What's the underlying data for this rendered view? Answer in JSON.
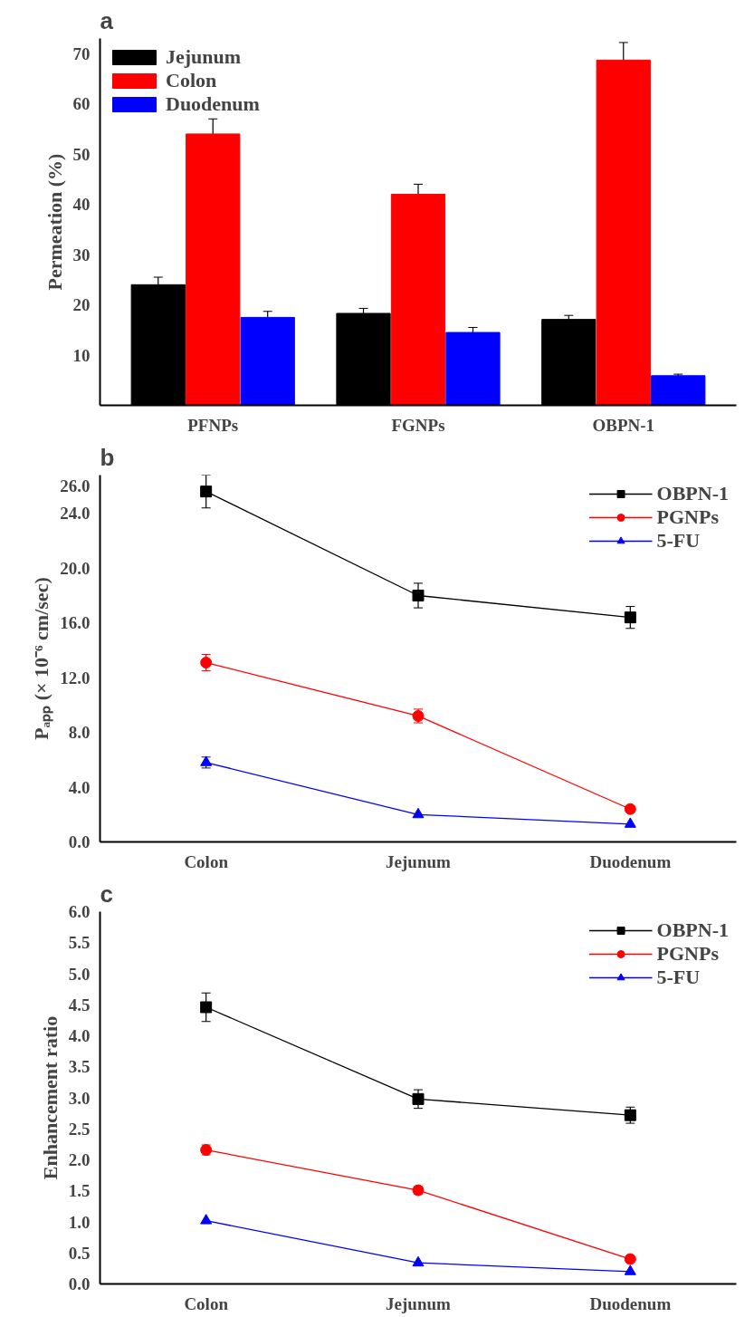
{
  "chart_data": [
    {
      "type": "bar",
      "title": "a",
      "ylabel": "Permeation (%)",
      "categories": [
        "PFNPs",
        "FGNPs",
        "OBPN-1"
      ],
      "ylim": [
        0,
        73
      ],
      "yticks": [
        10,
        20,
        30,
        40,
        50,
        60,
        70
      ],
      "legend": "top left",
      "grid": false,
      "series": [
        {
          "name": "Jejunum",
          "color": "#000000",
          "values": [
            24,
            18.3,
            17.1
          ],
          "errors": [
            1.5,
            1,
            0.8
          ]
        },
        {
          "name": "Colon",
          "color": "#ff0000",
          "values": [
            54,
            42,
            68.7
          ],
          "errors": [
            3,
            2,
            3.5
          ]
        },
        {
          "name": "Duodenum",
          "color": "#0000ff",
          "values": [
            17.5,
            14.5,
            5.9
          ],
          "errors": [
            1.2,
            1,
            0.3
          ]
        }
      ]
    },
    {
      "type": "line",
      "title": "b",
      "ylabel": "Pₐₚₚ (× 10⁻⁶ cm/sec)",
      "categories": [
        "Colon",
        "Jejunum",
        "Duodenum"
      ],
      "ylim": [
        0,
        26.8
      ],
      "yticks": [
        {
          "value": 0,
          "label": "0.0"
        },
        {
          "value": 4,
          "label": "4.0"
        },
        {
          "value": 8,
          "label": "8.0"
        },
        {
          "value": 12,
          "label": "12.0"
        },
        {
          "value": 16,
          "label": "16.0"
        },
        {
          "value": 20,
          "label": "20.0"
        },
        {
          "value": 24,
          "label": "24.0"
        },
        {
          "value": 26,
          "label": "26.0"
        }
      ],
      "legend": "top right",
      "grid": false,
      "series": [
        {
          "name": "OBPN-1",
          "color": "#000000",
          "marker": "square",
          "values": [
            25.6,
            18.0,
            16.4
          ],
          "errors": [
            1.2,
            0.9,
            0.8
          ]
        },
        {
          "name": "PGNPs",
          "color": "#ff0000",
          "marker": "circle",
          "values": [
            13.1,
            9.2,
            2.4
          ],
          "errors": [
            0.6,
            0.5,
            null
          ]
        },
        {
          "name": "5-FU",
          "color": "#0000ff",
          "marker": "triangle",
          "values": [
            5.8,
            2.0,
            1.3
          ],
          "errors": [
            0.4,
            null,
            null
          ]
        }
      ]
    },
    {
      "type": "line",
      "title": "c",
      "ylabel": "Enhancement ratio",
      "categories": [
        "Colon",
        "Jejunum",
        "Duodenum"
      ],
      "ylim": [
        0,
        6.0
      ],
      "yticks": [
        {
          "value": 0,
          "label": "0.0"
        },
        {
          "value": 0.5,
          "label": "0.5"
        },
        {
          "value": 1,
          "label": "1.0"
        },
        {
          "value": 1.5,
          "label": "1.5"
        },
        {
          "value": 2,
          "label": "2.0"
        },
        {
          "value": 2.5,
          "label": "2.5"
        },
        {
          "value": 3,
          "label": "3.0"
        },
        {
          "value": 3.5,
          "label": "3.5"
        },
        {
          "value": 4,
          "label": "4.0"
        },
        {
          "value": 4.5,
          "label": "4.5"
        },
        {
          "value": 5,
          "label": "5.0"
        },
        {
          "value": 5.5,
          "label": "5.5"
        },
        {
          "value": 6,
          "label": "6.0"
        }
      ],
      "legend": "top right",
      "grid": false,
      "series": [
        {
          "name": "OBPN-1",
          "color": "#000000",
          "marker": "square",
          "values": [
            4.46,
            2.98,
            2.72
          ],
          "errors": [
            0.23,
            0.15,
            0.13
          ]
        },
        {
          "name": "PGNPs",
          "color": "#ff0000",
          "marker": "circle",
          "values": [
            2.16,
            1.51,
            0.4
          ],
          "errors": [
            0.08,
            0.06,
            null
          ]
        },
        {
          "name": "5-FU",
          "color": "#0000ff",
          "marker": "triangle",
          "values": [
            1.02,
            0.34,
            0.2
          ],
          "errors": [
            null,
            null,
            null
          ]
        }
      ]
    }
  ]
}
